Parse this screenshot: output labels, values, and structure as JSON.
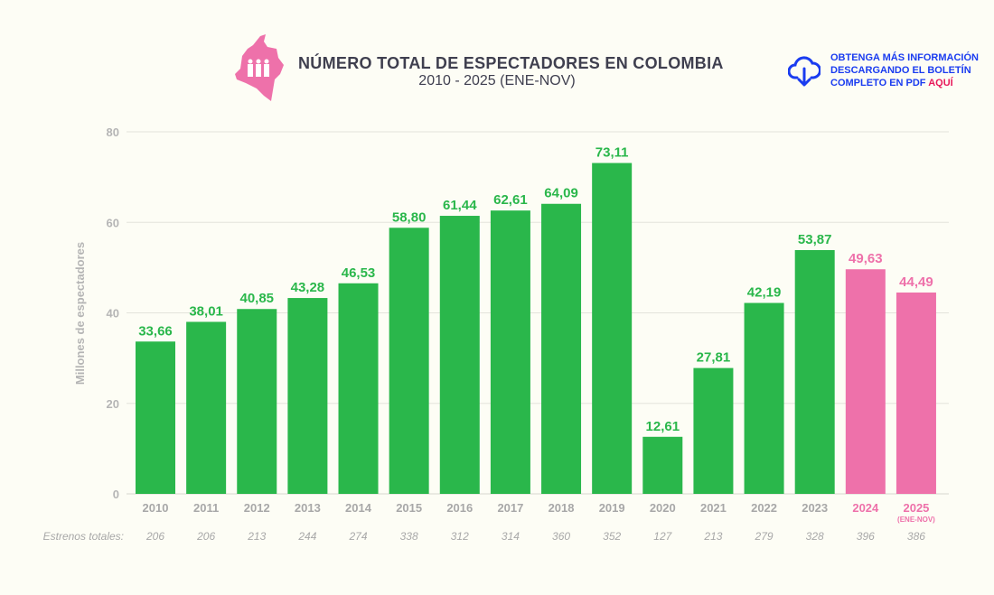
{
  "header": {
    "title": "NÚMERO TOTAL DE ESPECTADORES EN COLOMBIA",
    "subtitle": "2010 - 2025 (ENE-NOV)",
    "info_line1": "OBTENGA MÁS INFORMACIÓN",
    "info_line2": "DESCARGANDO EL BOLETÍN",
    "info_line3": "COMPLETO EN PDF",
    "info_link": "AQUÍ",
    "logo_icon": "colombia-map-people-icon",
    "download_icon": "cloud-download-icon"
  },
  "chart_data": {
    "type": "bar",
    "title": "NÚMERO TOTAL DE ESPECTADORES EN COLOMBIA",
    "subtitle": "2010 - 2025 (ENE-NOV)",
    "ylabel": "Millones de espectadores",
    "ylim": [
      0,
      80
    ],
    "yticks": [
      0,
      20,
      40,
      60,
      80
    ],
    "grid": true,
    "categories": [
      "2010",
      "2011",
      "2012",
      "2013",
      "2014",
      "2015",
      "2016",
      "2017",
      "2018",
      "2019",
      "2020",
      "2021",
      "2022",
      "2023",
      "2024",
      "2025"
    ],
    "category_note_2025": "(ENE-NOV)",
    "values": [
      33.66,
      38.01,
      40.85,
      43.28,
      46.53,
      58.8,
      61.44,
      62.61,
      64.09,
      73.11,
      12.61,
      27.81,
      42.19,
      53.87,
      49.63,
      44.49
    ],
    "value_labels": [
      "33,66",
      "38,01",
      "40,85",
      "43,28",
      "46,53",
      "58,80",
      "61,44",
      "62,61",
      "64,09",
      "73,11",
      "12,61",
      "27,81",
      "42,19",
      "53,87",
      "49,63",
      "44,49"
    ],
    "colors": [
      "#2ab74b",
      "#2ab74b",
      "#2ab74b",
      "#2ab74b",
      "#2ab74b",
      "#2ab74b",
      "#2ab74b",
      "#2ab74b",
      "#2ab74b",
      "#2ab74b",
      "#2ab74b",
      "#2ab74b",
      "#2ab74b",
      "#2ab74b",
      "#ee71aa",
      "#ee71aa"
    ],
    "extra_row": {
      "label": "Estrenos totales:",
      "values": [
        "206",
        "206",
        "213",
        "244",
        "274",
        "338",
        "312",
        "314",
        "360",
        "352",
        "127",
        "213",
        "279",
        "328",
        "396",
        "386"
      ]
    }
  }
}
